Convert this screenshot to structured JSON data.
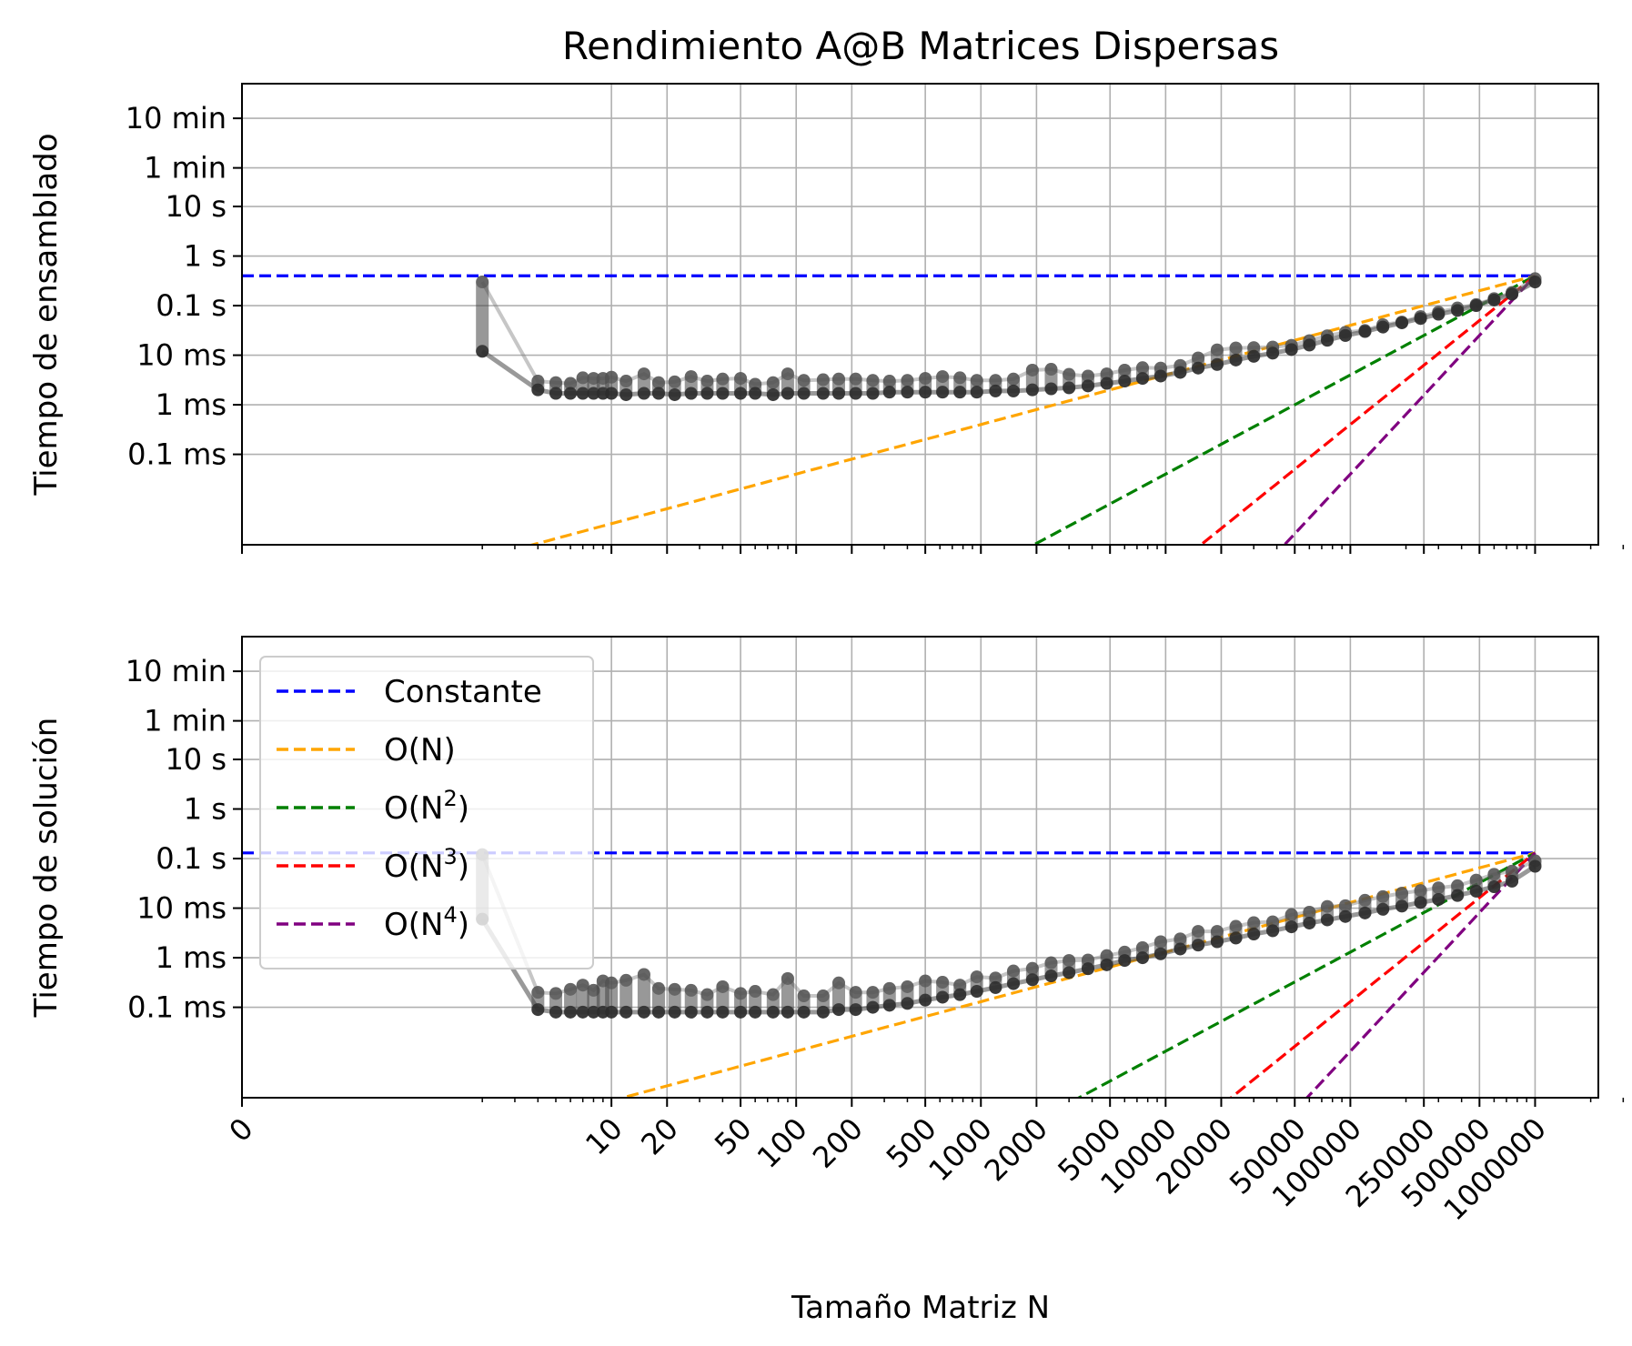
{
  "chart_data": {
    "type": "line",
    "title": "Rendimiento A@B Matrices Dispersas",
    "xlabel": "Tamaño Matriz N",
    "x_scale": "symlog",
    "x_ticks": [
      0,
      10,
      20,
      50,
      100,
      200,
      500,
      1000,
      2000,
      5000,
      10000,
      20000,
      50000,
      100000,
      250000,
      500000,
      1000000
    ],
    "x_tick_labels": [
      "0",
      "10",
      "20",
      "50",
      "100",
      "200",
      "500",
      "1000",
      "2000",
      "5000",
      "10000",
      "20000",
      "50000",
      "100000",
      "250000",
      "500000",
      "1000000"
    ],
    "grid": true,
    "legend": {
      "placement": "upper-left of bottom panel",
      "entries": [
        {
          "label": "Constante",
          "color": "#0000ff",
          "style": "dashed"
        },
        {
          "label": "O(N)",
          "color": "#ffa500",
          "style": "dashed"
        },
        {
          "label": "O(N",
          "sup": "2",
          "suffix": ")",
          "color": "#008000",
          "style": "dashed"
        },
        {
          "label": "O(N",
          "sup": "3",
          "suffix": ")",
          "color": "#ff0000",
          "style": "dashed"
        },
        {
          "label": "O(N",
          "sup": "4",
          "suffix": ")",
          "color": "#800080",
          "style": "dashed"
        }
      ]
    },
    "panels": [
      {
        "ylabel": "Tiempo de ensamblado",
        "y_scale": "log",
        "y_unit": "seconds",
        "ylim": [
          1.5e-06,
          3000
        ],
        "y_ticks": [
          600,
          60,
          10,
          1,
          0.1,
          0.01,
          0.001,
          0.0001
        ],
        "y_tick_labels": [
          "10 min",
          "1 min",
          "10 s",
          "1 s",
          "0.1 s",
          "10 ms",
          "1 ms",
          "0.1 ms"
        ],
        "reference_value": 0.4,
        "measurements": {
          "color": "#000000",
          "x": [
            2,
            4,
            5,
            6,
            7,
            8,
            9,
            10,
            12,
            15,
            18,
            22,
            27,
            33,
            40,
            50,
            60,
            75,
            90,
            110,
            140,
            170,
            210,
            260,
            320,
            400,
            500,
            620,
            770,
            950,
            1200,
            1500,
            1900,
            2400,
            3000,
            3800,
            4800,
            6000,
            7500,
            9400,
            12000,
            15000,
            19000,
            24000,
            30000,
            38000,
            48000,
            60000,
            75000,
            94000,
            120000,
            150000,
            190000,
            240000,
            300000,
            380000,
            480000,
            600000,
            750000,
            1000000
          ],
          "y_min": [
            0.012,
            0.002,
            0.0017,
            0.0017,
            0.0017,
            0.0017,
            0.0017,
            0.0017,
            0.0016,
            0.0017,
            0.0017,
            0.0016,
            0.0017,
            0.0017,
            0.0017,
            0.0017,
            0.0017,
            0.0016,
            0.0017,
            0.0017,
            0.0017,
            0.0017,
            0.0017,
            0.0017,
            0.0018,
            0.0018,
            0.0018,
            0.0018,
            0.0018,
            0.0018,
            0.0019,
            0.0019,
            0.002,
            0.0021,
            0.0022,
            0.0024,
            0.0027,
            0.003,
            0.0034,
            0.0038,
            0.0045,
            0.0055,
            0.0065,
            0.008,
            0.0095,
            0.011,
            0.013,
            0.016,
            0.02,
            0.025,
            0.03,
            0.037,
            0.045,
            0.055,
            0.067,
            0.08,
            0.1,
            0.13,
            0.17,
            0.3
          ],
          "y_max": [
            0.3,
            0.003,
            0.0028,
            0.0027,
            0.0035,
            0.0034,
            0.0034,
            0.0036,
            0.003,
            0.0042,
            0.0028,
            0.0029,
            0.0037,
            0.003,
            0.0033,
            0.0034,
            0.0026,
            0.0028,
            0.0042,
            0.0031,
            0.0032,
            0.0033,
            0.0033,
            0.0031,
            0.003,
            0.0031,
            0.0034,
            0.0037,
            0.0035,
            0.0031,
            0.0031,
            0.0033,
            0.005,
            0.0052,
            0.0041,
            0.0038,
            0.0042,
            0.005,
            0.0056,
            0.0055,
            0.0062,
            0.0088,
            0.0128,
            0.014,
            0.0142,
            0.0146,
            0.0158,
            0.0196,
            0.0246,
            0.0289,
            0.0315,
            0.0413,
            0.0467,
            0.06,
            0.0739,
            0.0896,
            0.1052,
            0.1384,
            0.1837,
            0.35
          ]
        }
      },
      {
        "ylabel": "Tiempo de solución",
        "y_scale": "log",
        "y_unit": "seconds",
        "ylim": [
          1.5e-06,
          3000
        ],
        "y_ticks": [
          600,
          60,
          10,
          1,
          0.1,
          0.01,
          0.001,
          0.0001
        ],
        "y_tick_labels": [
          "10 min",
          "1 min",
          "10 s",
          "1 s",
          "0.1 s",
          "10 ms",
          "1 ms",
          "0.1 ms"
        ],
        "reference_value": 0.13,
        "measurements": {
          "color": "#000000",
          "x": [
            2,
            4,
            5,
            6,
            7,
            8,
            9,
            10,
            12,
            15,
            18,
            22,
            27,
            33,
            40,
            50,
            60,
            75,
            90,
            110,
            140,
            170,
            210,
            260,
            320,
            400,
            500,
            620,
            770,
            950,
            1200,
            1500,
            1900,
            2400,
            3000,
            3800,
            4800,
            6000,
            7500,
            9400,
            12000,
            15000,
            19000,
            24000,
            30000,
            38000,
            48000,
            60000,
            75000,
            94000,
            120000,
            150000,
            190000,
            240000,
            300000,
            380000,
            480000,
            600000,
            750000,
            1000000
          ],
          "y_min": [
            0.006,
            9e-05,
            8e-05,
            8e-05,
            8e-05,
            8e-05,
            8e-05,
            8e-05,
            8e-05,
            8e-05,
            8e-05,
            8e-05,
            8e-05,
            8e-05,
            8e-05,
            8e-05,
            8e-05,
            8e-05,
            8e-05,
            8e-05,
            8e-05,
            9e-05,
            9e-05,
            0.0001,
            0.00011,
            0.00012,
            0.00014,
            0.00016,
            0.00018,
            0.00021,
            0.00025,
            0.0003,
            0.00036,
            0.00043,
            0.0005,
            0.0006,
            0.00072,
            0.00088,
            0.001,
            0.0012,
            0.0015,
            0.0018,
            0.0021,
            0.0025,
            0.003,
            0.0035,
            0.0042,
            0.005,
            0.0058,
            0.0068,
            0.008,
            0.0095,
            0.011,
            0.013,
            0.015,
            0.018,
            0.022,
            0.027,
            0.035,
            0.07
          ],
          "y_max": [
            0.12,
            0.0002,
            0.00019,
            0.00023,
            0.00028,
            0.00022,
            0.00034,
            0.00031,
            0.00035,
            0.00046,
            0.00024,
            0.00023,
            0.00022,
            0.00018,
            0.00026,
            0.00019,
            0.00021,
            0.00018,
            0.00038,
            0.00017,
            0.00017,
            0.00031,
            0.0002,
            0.0002,
            0.00024,
            0.00026,
            0.00034,
            0.00032,
            0.00028,
            0.00041,
            0.00039,
            0.00054,
            0.00061,
            0.00079,
            0.00088,
            0.0009,
            0.0011,
            0.0013,
            0.0016,
            0.0021,
            0.0024,
            0.0034,
            0.0034,
            0.0043,
            0.0051,
            0.0053,
            0.0074,
            0.0083,
            0.0108,
            0.0112,
            0.0144,
            0.0171,
            0.02,
            0.0226,
            0.0257,
            0.0283,
            0.0368,
            0.0482,
            0.0559,
            0.09
          ]
        }
      }
    ]
  }
}
